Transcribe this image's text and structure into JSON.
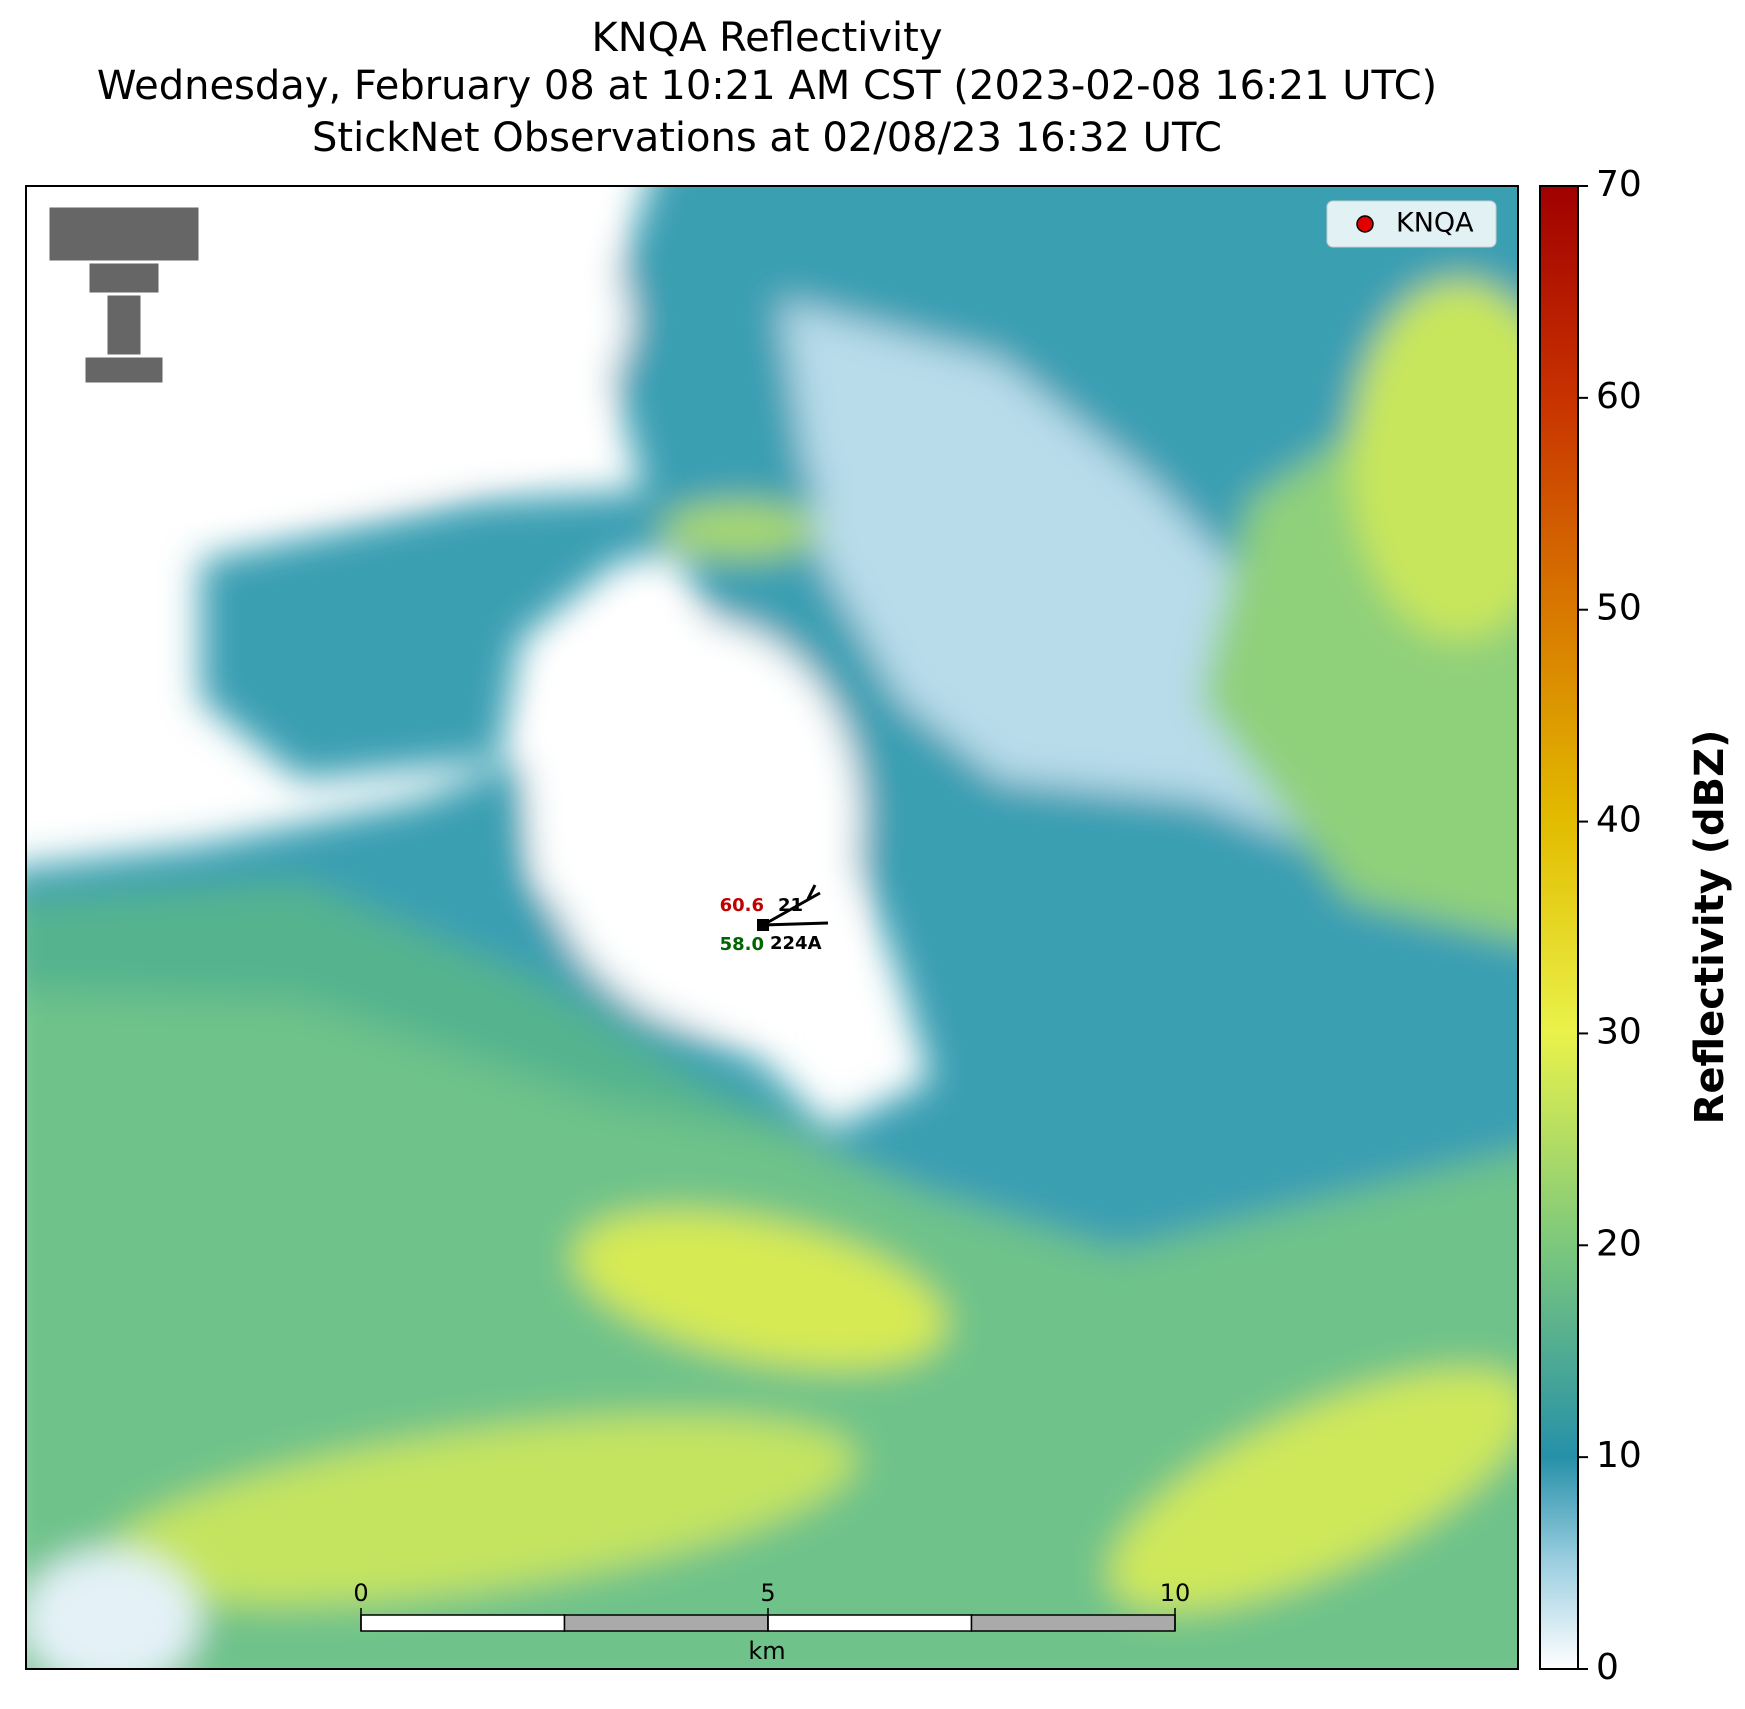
{
  "title": [
    "KNQA Reflectivity",
    "Wednesday, February 08 at 10:21 AM CST (2023-02-08 16:21 UTC)",
    "StickNet Observations at 02/08/23 16:32 UTC"
  ],
  "colorbar": {
    "label": "Reflectivity (dBZ)",
    "lim": [
      0,
      70
    ],
    "ticks": [
      0,
      10,
      20,
      30,
      40,
      50,
      60,
      70
    ]
  },
  "legend": {
    "label": "KNQA"
  },
  "station": {
    "temperature": "60.6",
    "dewpoint": "58.0",
    "pressure": "21",
    "id": "224A"
  },
  "scale_bar": {
    "lim": [
      0,
      10
    ],
    "ticks": [
      0,
      5,
      10
    ],
    "unit": "km"
  }
}
